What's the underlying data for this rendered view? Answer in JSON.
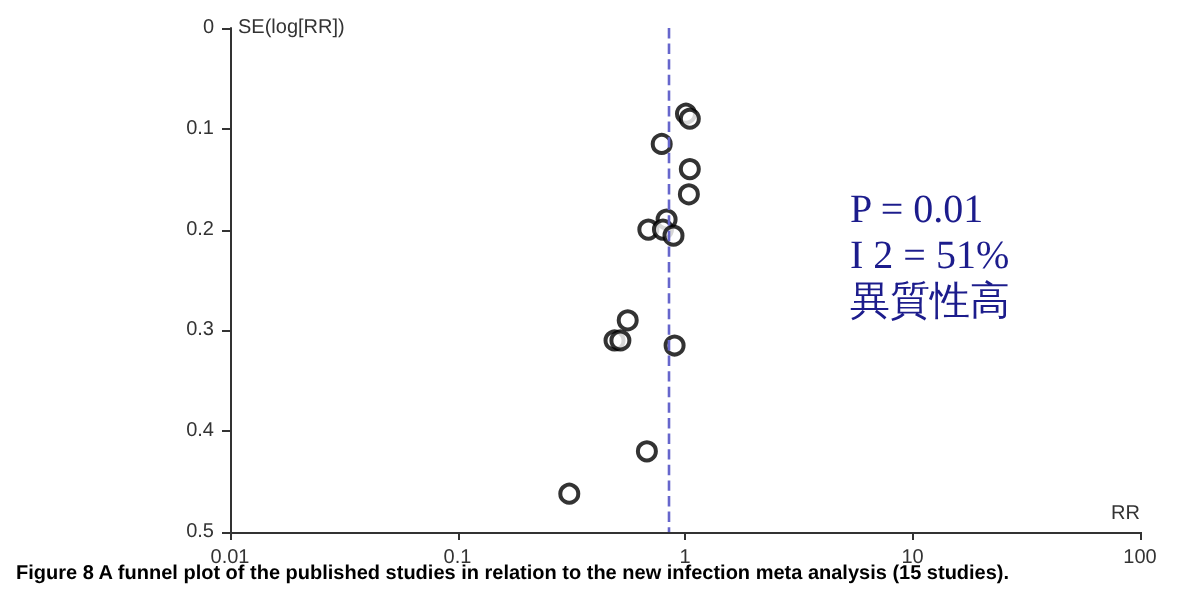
{
  "chart_data": {
    "type": "scatter",
    "xlabel": "RR",
    "ylabel": "SE(log[RR])",
    "x": [
      1.01,
      1.05,
      0.79,
      1.05,
      1.04,
      0.83,
      0.69,
      0.8,
      0.89,
      0.56,
      0.49,
      0.52,
      0.9,
      0.68,
      0.31
    ],
    "series": [
      {
        "color": "#000000",
        "values": [
          0.085,
          0.09,
          0.115,
          0.14,
          0.165,
          0.19,
          0.2,
          0.2,
          0.206,
          0.29,
          0.31,
          0.31,
          0.315,
          0.42,
          0.462
        ]
      }
    ],
    "log": "x",
    "xlim": [
      0.01,
      100
    ],
    "xticks": [
      0.01,
      0.1,
      1,
      10,
      100
    ],
    "ylim": [
      0.5,
      0
    ],
    "yticks": [
      0,
      0.1,
      0.2,
      0.3,
      0.4,
      0.5
    ],
    "grid": false,
    "marker": "circle",
    "ref_lines": [
      {
        "axis": "x",
        "value": 0.85,
        "color": "#6666cc",
        "line_style": "dashed"
      }
    ],
    "annotations": [
      "P = 0.01",
      "I 2 = 51%",
      "異質性高",
      "Figure 8 A funnel plot of the published studies in relation to the new infection meta analysis (15 studies)."
    ]
  }
}
